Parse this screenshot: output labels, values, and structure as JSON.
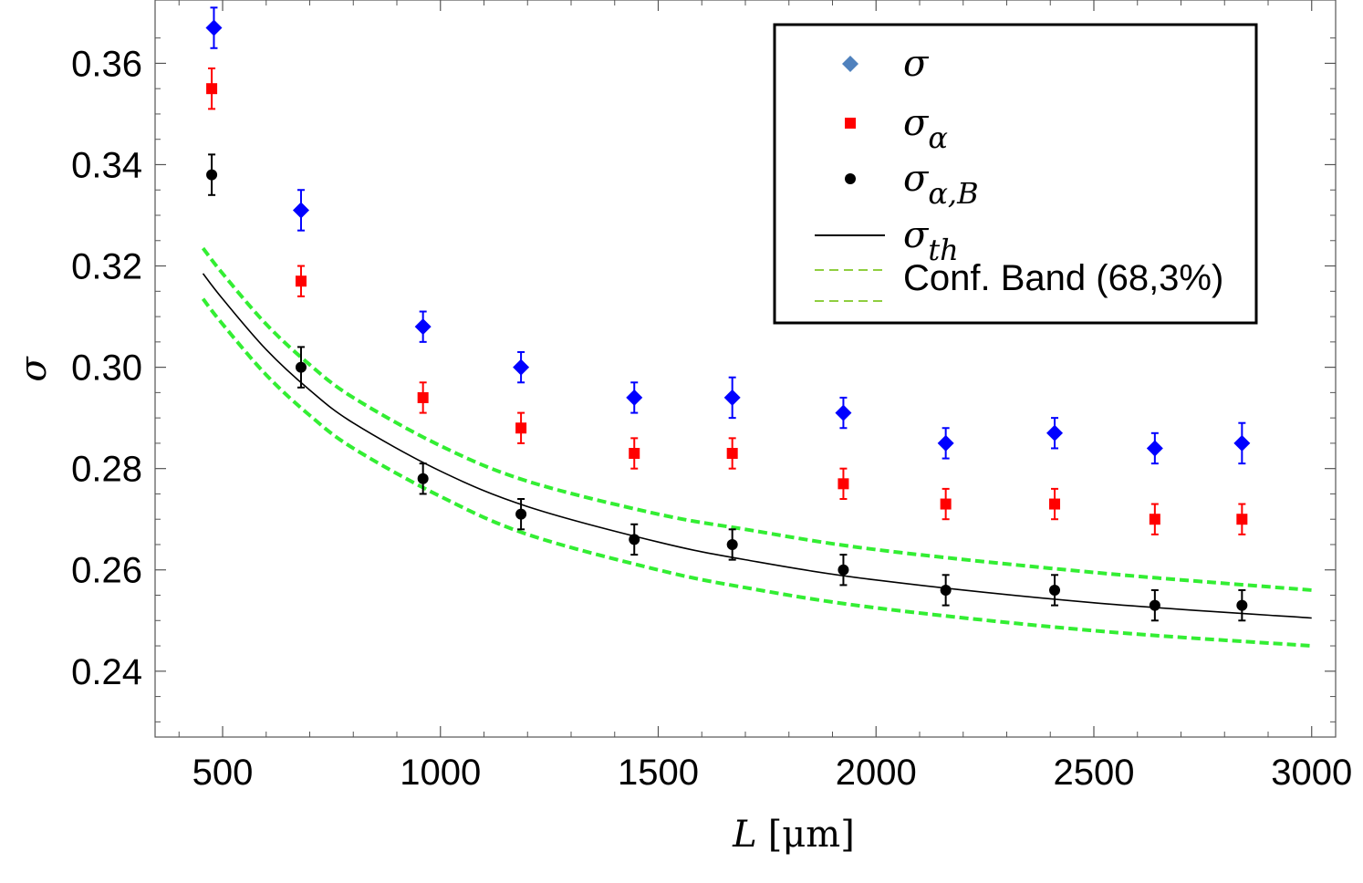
{
  "chart_data": {
    "type": "scatter",
    "title": "",
    "xlabel": "L [μm]",
    "xlabel_var": "L",
    "xlabel_unit": "[μm]",
    "ylabel": "σ",
    "xlim": [
      345,
      3055
    ],
    "ylim": [
      0.227,
      0.3725
    ],
    "x_ticks": [
      500,
      1000,
      1500,
      2000,
      2500,
      3000
    ],
    "y_ticks": [
      0.24,
      0.26,
      0.28,
      0.3,
      0.32,
      0.34,
      0.36
    ],
    "y_tick_labels": [
      "0.24",
      "0.26",
      "0.28",
      "0.30",
      "0.32",
      "0.34",
      "0.36"
    ],
    "x_tick_labels": [
      "500",
      "1000",
      "1500",
      "2000",
      "2500",
      "3000"
    ],
    "series": [
      {
        "name": "σ",
        "marker": "diamond",
        "color": "#0000ff",
        "legend_color": "#4f81bd",
        "x": [
          480,
          680,
          960,
          1185,
          1445,
          1670,
          1925,
          2160,
          2410,
          2640,
          2840
        ],
        "y": [
          0.367,
          0.331,
          0.308,
          0.3,
          0.294,
          0.294,
          0.291,
          0.285,
          0.287,
          0.284,
          0.285
        ],
        "err": [
          0.004,
          0.004,
          0.003,
          0.003,
          0.003,
          0.004,
          0.003,
          0.003,
          0.003,
          0.003,
          0.004
        ]
      },
      {
        "name": "σ_α",
        "marker": "square",
        "color": "#ff0000",
        "x": [
          475,
          680,
          960,
          1185,
          1445,
          1670,
          1925,
          2160,
          2410,
          2640,
          2840
        ],
        "y": [
          0.355,
          0.317,
          0.294,
          0.288,
          0.283,
          0.283,
          0.277,
          0.273,
          0.273,
          0.27,
          0.27
        ],
        "err": [
          0.004,
          0.003,
          0.003,
          0.003,
          0.003,
          0.003,
          0.003,
          0.003,
          0.003,
          0.003,
          0.003
        ]
      },
      {
        "name": "σ_α,B",
        "marker": "circle",
        "color": "#000000",
        "x": [
          475,
          680,
          960,
          1185,
          1445,
          1670,
          1925,
          2160,
          2410,
          2640,
          2840
        ],
        "y": [
          0.338,
          0.3,
          0.278,
          0.271,
          0.266,
          0.265,
          0.26,
          0.256,
          0.256,
          0.253,
          0.253
        ],
        "err": [
          0.004,
          0.004,
          0.003,
          0.003,
          0.003,
          0.003,
          0.003,
          0.003,
          0.003,
          0.003,
          0.003
        ]
      }
    ],
    "curves": [
      {
        "name": "σ_th",
        "style": "solid",
        "color": "#000000",
        "x": [
          455,
          500,
          600,
          700,
          800,
          1000,
          1200,
          1500,
          1700,
          2000,
          2500,
          3000
        ],
        "y": [
          0.3185,
          0.3135,
          0.3035,
          0.2955,
          0.289,
          0.2795,
          0.2725,
          0.2655,
          0.262,
          0.258,
          0.2535,
          0.2505
        ]
      },
      {
        "name": "Conf. Band upper",
        "style": "dashed",
        "color": "#33ee33",
        "x": [
          455,
          500,
          600,
          700,
          800,
          1000,
          1200,
          1500,
          1700,
          2000,
          2500,
          3000
        ],
        "y": [
          0.3235,
          0.3185,
          0.3085,
          0.3005,
          0.294,
          0.2845,
          0.2775,
          0.271,
          0.268,
          0.264,
          0.2595,
          0.256
        ]
      },
      {
        "name": "Conf. Band lower",
        "style": "dashed",
        "color": "#33ee33",
        "x": [
          455,
          500,
          600,
          700,
          800,
          1000,
          1200,
          1500,
          1700,
          2000,
          2500,
          3000
        ],
        "y": [
          0.3135,
          0.3085,
          0.2985,
          0.2905,
          0.284,
          0.2745,
          0.267,
          0.26,
          0.2565,
          0.2525,
          0.248,
          0.245
        ]
      }
    ],
    "legend": {
      "position": "top-right",
      "entries": [
        {
          "symbol": "σ",
          "sub": "",
          "marker": "diamond",
          "color": "#4f81bd"
        },
        {
          "symbol": "σ",
          "sub": "α",
          "marker": "square",
          "color": "#ff0000"
        },
        {
          "symbol": "σ",
          "sub": "α,B",
          "marker": "circle",
          "color": "#000000"
        },
        {
          "symbol": "σ",
          "sub": "th",
          "marker": "line",
          "color": "#000000"
        },
        {
          "symbol": "Conf. Band (68,3%)",
          "sub": "",
          "marker": "dashed",
          "color": "#8fce3f"
        }
      ]
    }
  }
}
